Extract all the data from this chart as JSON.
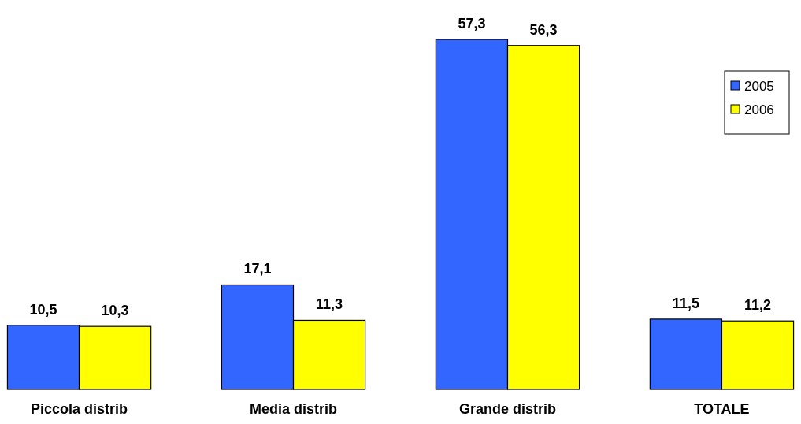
{
  "chart_data": {
    "type": "bar",
    "categories": [
      "Piccola distrib",
      "Media distrib",
      "Grande distrib",
      "TOTALE"
    ],
    "series": [
      {
        "name": "2005",
        "color": "#3366ff",
        "values": [
          10.5,
          17.1,
          57.3,
          11.5
        ],
        "value_labels": [
          "10,5",
          "17,1",
          "57,3",
          "11,5"
        ]
      },
      {
        "name": "2006",
        "color": "#ffff00",
        "values": [
          10.3,
          11.3,
          56.3,
          11.2
        ],
        "value_labels": [
          "10,3",
          "11,3",
          "56,3",
          "11,2"
        ]
      }
    ],
    "legend": "top right",
    "grid": false
  }
}
